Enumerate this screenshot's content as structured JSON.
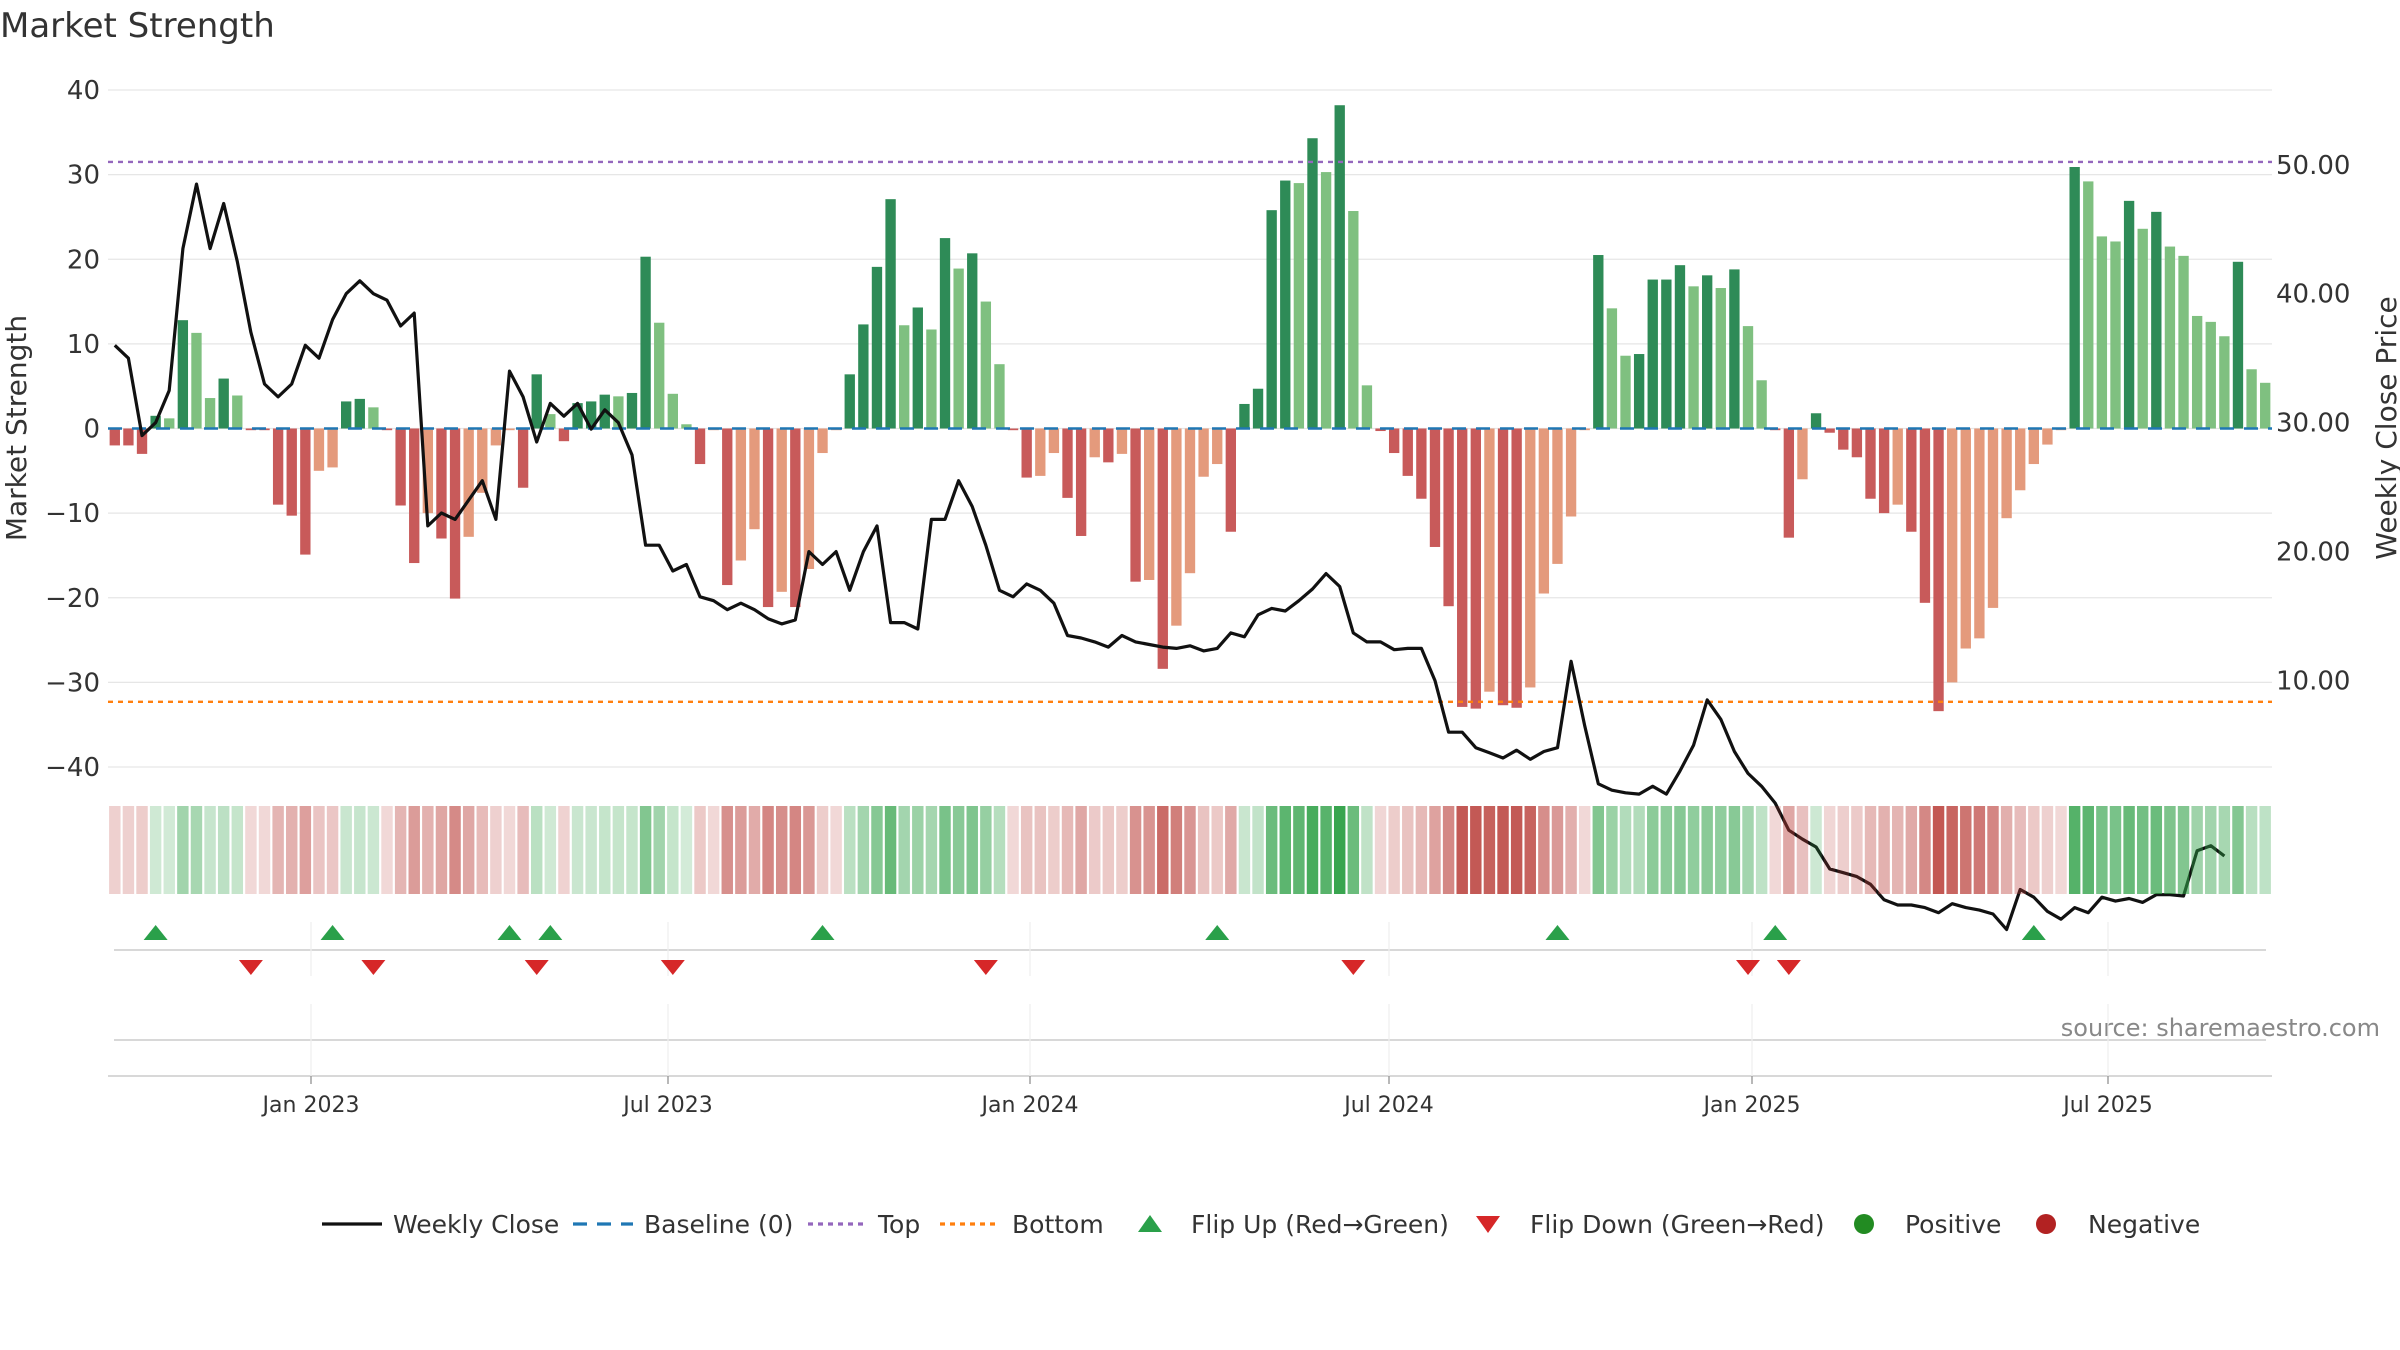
{
  "chart_data": {
    "type": "bar",
    "title": "Market Strength",
    "source": "source: sharemaestro.com",
    "ylabel_left": "Market Strength",
    "ylabel_right": "Weekly Close Price",
    "ylim_left": [
      -40,
      40
    ],
    "yticks_left": [
      "40",
      "30",
      "20",
      "10",
      "0",
      "−10",
      "−20",
      "−30",
      "−40"
    ],
    "ylim_right": [
      3.3,
      55.8
    ],
    "yticks_right": [
      "50.00",
      "40.00",
      "30.00",
      "20.00",
      "10.00"
    ],
    "top_level": 31.5,
    "bottom_level": -32.3,
    "x_tick_labels": [
      "Jan 2023",
      "Jul 2023",
      "Jan 2024",
      "Jul 2024",
      "Jan 2025",
      "Jul 2025"
    ],
    "strength": [
      -2,
      -2,
      -3,
      1.5,
      1.2,
      12.8,
      11.3,
      3.6,
      5.9,
      3.9,
      -0.2,
      -0.2,
      -9,
      -10.3,
      -14.9,
      -5,
      -4.6,
      3.2,
      3.5,
      2.5,
      -0.2,
      -9.1,
      -15.9,
      -10,
      -13,
      -20.1,
      -12.8,
      -7.6,
      -2,
      -0.2,
      -7,
      6.4,
      1.7,
      -1.5,
      3,
      3.2,
      4,
      3.8,
      4.2,
      20.3,
      12.5,
      4.1,
      0.5,
      -4.2,
      -0.2,
      -18.5,
      -15.6,
      -11.9,
      -21.1,
      -19.3,
      -21.1,
      -16.6,
      -2.9,
      -0.2,
      6.4,
      12.3,
      19.1,
      27.1,
      12.2,
      14.3,
      11.7,
      22.5,
      18.9,
      20.7,
      15,
      7.6,
      -0.2,
      -5.8,
      -5.6,
      -2.9,
      -8.2,
      -12.7,
      -3.4,
      -4,
      -3,
      -18.1,
      -17.9,
      -28.4,
      -23.3,
      -17.1,
      -5.7,
      -4.2,
      -12.2,
      2.9,
      4.7,
      25.8,
      29.3,
      29,
      34.3,
      30.3,
      38.2,
      25.7,
      5.1,
      -0.3,
      -2.9,
      -5.6,
      -8.3,
      -14,
      -21,
      -32.9,
      -33.1,
      -31.1,
      -32.7,
      -33,
      -30.6,
      -19.5,
      -16,
      -10.4,
      -0.2,
      20.5,
      14.2,
      8.6,
      8.8,
      17.6,
      17.6,
      19.3,
      16.8,
      18.1,
      16.6,
      18.8,
      12.1,
      5.7,
      -0.2,
      -12.9,
      -6,
      1.8,
      -0.5,
      -2.5,
      -3.4,
      -8.3,
      -10,
      -9,
      -12.2,
      -20.6,
      -33.4,
      -30,
      -26,
      -24.8,
      -21.2,
      -10.6,
      -7.3,
      -4.2,
      -1.9,
      -0.2,
      30.9,
      29.2,
      22.7,
      22.1,
      26.9,
      23.6,
      25.6,
      21.5,
      20.4,
      13.3,
      12.6,
      10.9,
      19.7,
      7,
      5.4
    ],
    "weekly_close": [
      36,
      35,
      29,
      30,
      32.5,
      43.5,
      48.5,
      43.5,
      47,
      42.5,
      37,
      33,
      32,
      33,
      36,
      35,
      38,
      40,
      41,
      40,
      39.5,
      37.5,
      38.5,
      22,
      23,
      22.5,
      24,
      25.5,
      22.5,
      34,
      32,
      28.5,
      31.5,
      30.5,
      31.5,
      29.5,
      31,
      30,
      27.5,
      20.5,
      20.5,
      18.5,
      19,
      16.5,
      16.2,
      15.5,
      16,
      15.5,
      14.8,
      14.4,
      14.7,
      20,
      19,
      20,
      17,
      20,
      22,
      14.5,
      14.5,
      14,
      22.5,
      22.5,
      25.5,
      23.5,
      20.5,
      17,
      16.5,
      17.5,
      17,
      16,
      13.5,
      13.3,
      13,
      12.6,
      13.5,
      13,
      12.8,
      12.6,
      12.5,
      12.7,
      12.3,
      12.5,
      13.7,
      13.4,
      15.1,
      15.6,
      15.4,
      16.2,
      17.1,
      18.3,
      17.3,
      13.7,
      13,
      13,
      12.4,
      12.5,
      12.5,
      10,
      6,
      6,
      4.8,
      4.4,
      4,
      4.6,
      3.9,
      4.5,
      4.8,
      11.5,
      6.5,
      2,
      1.5,
      1.3,
      1.2,
      1.8,
      1.2,
      3,
      5,
      8.5,
      7,
      4.5,
      2.8,
      1.8,
      0.5,
      -1.6,
      -2.3,
      -2.9,
      -4.6,
      -4.9,
      -5.2,
      -5.8,
      -7,
      -7.4,
      -7.4,
      -7.6,
      -8,
      -7.3,
      -7.6,
      -7.8,
      -8.1,
      -9.3,
      -6.2,
      -6.8,
      -7.9,
      -8.5,
      -7.6,
      -8,
      -6.8,
      -7.1,
      -6.9,
      -7.2,
      -6.6,
      -6.6,
      -6.7,
      -3.2,
      -2.8,
      -3.6
    ],
    "flip_up": [
      3,
      16,
      29,
      32,
      52,
      81,
      106,
      122,
      141
    ],
    "flip_down": [
      10,
      19,
      31,
      41,
      64,
      91,
      120,
      123
    ],
    "legend": [
      "Weekly Close",
      "Baseline (0)",
      "Top",
      "Bottom",
      "Flip Up (Red→Green)",
      "Flip Down (Green→Red)",
      "Positive",
      "Negative"
    ],
    "colors": {
      "pos_strong": "#2e8b57",
      "pos_weak": "#7fc080",
      "neg_strong": "#c85a5a",
      "neg_weak": "#e49a7c",
      "baseline": "#1f77b4",
      "top": "#9467bd",
      "bottom": "#ff7f0e",
      "close": "#111111",
      "flip_up": "#2aa04a",
      "flip_down": "#d62728",
      "positive": "#228b22",
      "negative": "#b22222"
    }
  }
}
